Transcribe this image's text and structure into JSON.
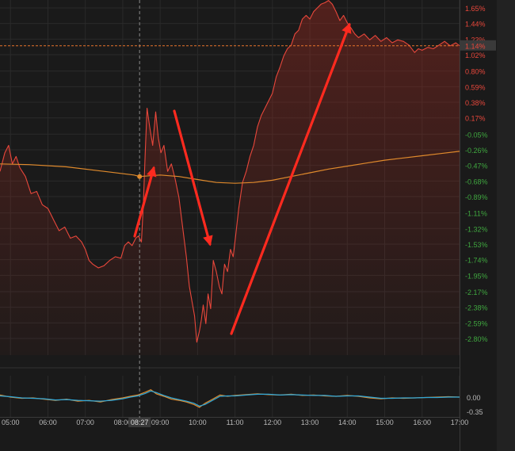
{
  "colors": {
    "background": "#1a1a1a",
    "grid": "#2a2a2a",
    "price_line": "#e8473b",
    "area_fill": "#a52a1f",
    "average_line": "#e08a2c",
    "reference_line": "#e8742b",
    "positive_label": "#e8473b",
    "negative_label": "#3fa63f",
    "annotation_arrow": "#ff2a1f",
    "oscillator_a": "#e08a2c",
    "oscillator_b": "#2fa7d8",
    "axis_text": "#b8b8b8",
    "current_badge": "#3a3a3a"
  },
  "chart_data": [
    {
      "type": "line",
      "ylim": [
        -2.95,
        1.75
      ],
      "y_unit": "%",
      "y_tick_labels": [
        "1.65%",
        "1.44%",
        "1.23%",
        "1.02%",
        "0.80%",
        "0.59%",
        "0.38%",
        "0.17%",
        "-0.05%",
        "-0.26%",
        "-0.47%",
        "-0.68%",
        "-0.89%",
        "-1.11%",
        "-1.32%",
        "-1.53%",
        "-1.74%",
        "-1.95%",
        "-2.17%",
        "-2.38%",
        "-2.59%",
        "-2.80%"
      ],
      "y_tick_values": [
        1.65,
        1.44,
        1.23,
        1.02,
        0.8,
        0.59,
        0.38,
        0.17,
        -0.05,
        -0.26,
        -0.47,
        -0.68,
        -0.89,
        -1.11,
        -1.32,
        -1.53,
        -1.74,
        -1.95,
        -2.17,
        -2.38,
        -2.59,
        -2.8
      ],
      "x_tick_labels": [
        "05:00",
        "06:00",
        "07:00",
        "08:00",
        "09:00",
        "10:00",
        "11:00",
        "12:00",
        "13:00",
        "14:00",
        "15:00",
        "16:00",
        "17:00"
      ],
      "x_tick_hours": [
        5,
        6,
        7,
        8,
        9,
        10,
        11,
        12,
        13,
        14,
        15,
        16,
        17
      ],
      "xlim_hours": [
        4.72,
        17.0
      ],
      "current_value_label": "1.14%",
      "current_value": 1.14,
      "crosshair_time_label": "08:27",
      "crosshair_hour": 8.45,
      "series": [
        {
          "x": [
            4.72,
            4.85,
            4.95,
            5.05,
            5.15,
            5.25,
            5.4,
            5.55,
            5.7,
            5.85,
            6.0,
            6.15,
            6.3,
            6.45,
            6.6,
            6.75,
            6.9,
            7.0,
            7.1,
            7.2,
            7.35,
            7.5,
            7.65,
            7.8,
            7.95,
            8.05,
            8.15,
            8.25,
            8.35,
            8.42,
            8.5,
            8.55,
            8.6,
            8.65,
            8.72,
            8.8,
            8.88,
            8.95,
            9.02,
            9.1,
            9.2,
            9.3,
            9.4,
            9.5,
            9.6,
            9.7,
            9.78,
            9.85,
            9.92,
            9.98,
            10.05,
            10.1,
            10.15,
            10.22,
            10.28,
            10.35,
            10.42,
            10.5,
            10.58,
            10.65,
            10.72,
            10.8,
            10.88,
            10.95,
            11.02,
            11.1,
            11.2,
            11.3,
            11.4,
            11.5,
            11.6,
            11.7,
            11.8,
            11.9,
            12.0,
            12.1,
            12.2,
            12.3,
            12.4,
            12.5,
            12.6,
            12.7,
            12.8,
            12.9,
            13.0,
            13.1,
            13.2,
            13.3,
            13.4,
            13.5,
            13.6,
            13.7,
            13.8,
            13.9,
            14.0,
            14.1,
            14.2,
            14.3,
            14.45,
            14.6,
            14.75,
            14.9,
            15.05,
            15.2,
            15.35,
            15.5,
            15.65,
            15.8,
            15.9,
            16.0,
            16.15,
            16.3,
            16.45,
            16.6,
            16.75,
            16.9,
            17.0
          ],
          "y": [
            -0.55,
            -0.3,
            -0.2,
            -0.45,
            -0.35,
            -0.5,
            -0.62,
            -0.85,
            -0.82,
            -1.0,
            -1.05,
            -1.2,
            -1.35,
            -1.3,
            -1.45,
            -1.42,
            -1.5,
            -1.6,
            -1.75,
            -1.8,
            -1.85,
            -1.82,
            -1.75,
            -1.7,
            -1.72,
            -1.55,
            -1.5,
            -1.55,
            -1.45,
            -1.42,
            -1.5,
            -1.0,
            -0.3,
            0.3,
            0.05,
            -0.2,
            0.25,
            -0.1,
            -0.3,
            -0.2,
            -0.55,
            -0.45,
            -0.65,
            -0.9,
            -1.3,
            -1.7,
            -2.1,
            -2.3,
            -2.5,
            -2.85,
            -2.7,
            -2.55,
            -2.35,
            -2.6,
            -2.2,
            -2.4,
            -1.75,
            -1.9,
            -2.1,
            -2.2,
            -1.8,
            -1.9,
            -1.6,
            -1.7,
            -1.4,
            -1.05,
            -0.7,
            -0.55,
            -0.35,
            -0.2,
            0.05,
            0.2,
            0.3,
            0.4,
            0.5,
            0.72,
            0.85,
            1.0,
            1.1,
            1.15,
            1.3,
            1.35,
            1.5,
            1.55,
            1.5,
            1.6,
            1.65,
            1.7,
            1.72,
            1.75,
            1.7,
            1.6,
            1.48,
            1.55,
            1.45,
            1.38,
            1.3,
            1.25,
            1.3,
            1.22,
            1.28,
            1.2,
            1.25,
            1.18,
            1.22,
            1.2,
            1.15,
            1.05,
            1.1,
            1.08,
            1.12,
            1.1,
            1.15,
            1.2,
            1.14,
            1.18,
            1.14
          ]
        },
        {
          "x": [
            4.72,
            5.5,
            6.5,
            7.5,
            8.3,
            8.45,
            9.0,
            9.5,
            10.0,
            10.5,
            11.0,
            11.5,
            12.0,
            12.5,
            13.0,
            13.5,
            14.0,
            14.5,
            15.0,
            15.5,
            16.0,
            16.5,
            17.0
          ],
          "y": [
            -0.45,
            -0.46,
            -0.49,
            -0.55,
            -0.6,
            -0.62,
            -0.6,
            -0.62,
            -0.66,
            -0.7,
            -0.71,
            -0.7,
            -0.67,
            -0.62,
            -0.57,
            -0.52,
            -0.48,
            -0.44,
            -0.4,
            -0.37,
            -0.34,
            -0.31,
            -0.28
          ]
        }
      ]
    },
    {
      "type": "line",
      "ylim": [
        -0.45,
        0.25
      ],
      "y_tick_labels": [
        "0.00",
        "-0.35"
      ],
      "y_tick_values": [
        0.0,
        -0.35
      ],
      "series": [
        {
          "x": [
            4.72,
            5.0,
            5.3,
            5.6,
            5.9,
            6.2,
            6.5,
            6.8,
            7.1,
            7.4,
            7.7,
            8.0,
            8.2,
            8.4,
            8.6,
            8.75,
            8.9,
            9.1,
            9.3,
            9.5,
            9.7,
            9.9,
            10.05,
            10.2,
            10.4,
            10.6,
            10.8,
            11.0,
            11.3,
            11.6,
            11.9,
            12.2,
            12.5,
            12.8,
            13.1,
            13.4,
            13.7,
            14.0,
            14.3,
            14.6,
            14.9,
            15.2,
            15.5,
            15.8,
            16.1,
            16.4,
            16.7,
            17.0
          ],
          "y": [
            0.05,
            0.0,
            -0.03,
            -0.02,
            -0.05,
            -0.08,
            -0.05,
            -0.1,
            -0.08,
            -0.12,
            -0.06,
            -0.02,
            0.02,
            0.05,
            0.12,
            0.18,
            0.08,
            0.02,
            -0.05,
            -0.08,
            -0.12,
            -0.18,
            -0.25,
            -0.15,
            -0.05,
            0.05,
            0.02,
            0.04,
            0.06,
            0.08,
            0.06,
            0.05,
            0.07,
            0.04,
            0.05,
            0.03,
            0.02,
            0.04,
            0.02,
            -0.02,
            -0.04,
            -0.02,
            -0.03,
            -0.02,
            -0.01,
            0.0,
            0.01,
            0.0
          ]
        },
        {
          "x": [
            4.72,
            5.0,
            5.3,
            5.6,
            5.9,
            6.2,
            6.5,
            6.8,
            7.1,
            7.4,
            7.7,
            8.0,
            8.2,
            8.4,
            8.6,
            8.75,
            8.9,
            9.1,
            9.3,
            9.5,
            9.7,
            9.9,
            10.05,
            10.2,
            10.4,
            10.6,
            10.8,
            11.0,
            11.3,
            11.6,
            11.9,
            12.2,
            12.5,
            12.8,
            13.1,
            13.4,
            13.7,
            14.0,
            14.3,
            14.6,
            14.9,
            15.2,
            15.5,
            15.8,
            16.1,
            16.4,
            16.7,
            17.0
          ],
          "y": [
            0.03,
            0.01,
            -0.02,
            -0.03,
            -0.04,
            -0.07,
            -0.06,
            -0.08,
            -0.09,
            -0.1,
            -0.08,
            -0.04,
            0.0,
            0.03,
            0.09,
            0.15,
            0.11,
            0.04,
            -0.02,
            -0.06,
            -0.1,
            -0.15,
            -0.22,
            -0.18,
            -0.08,
            0.02,
            0.03,
            0.03,
            0.05,
            0.07,
            0.07,
            0.05,
            0.06,
            0.05,
            0.04,
            0.04,
            0.02,
            0.03,
            0.03,
            0.0,
            -0.03,
            -0.03,
            -0.02,
            -0.02,
            -0.01,
            -0.01,
            0.0,
            0.0
          ]
        }
      ]
    }
  ]
}
